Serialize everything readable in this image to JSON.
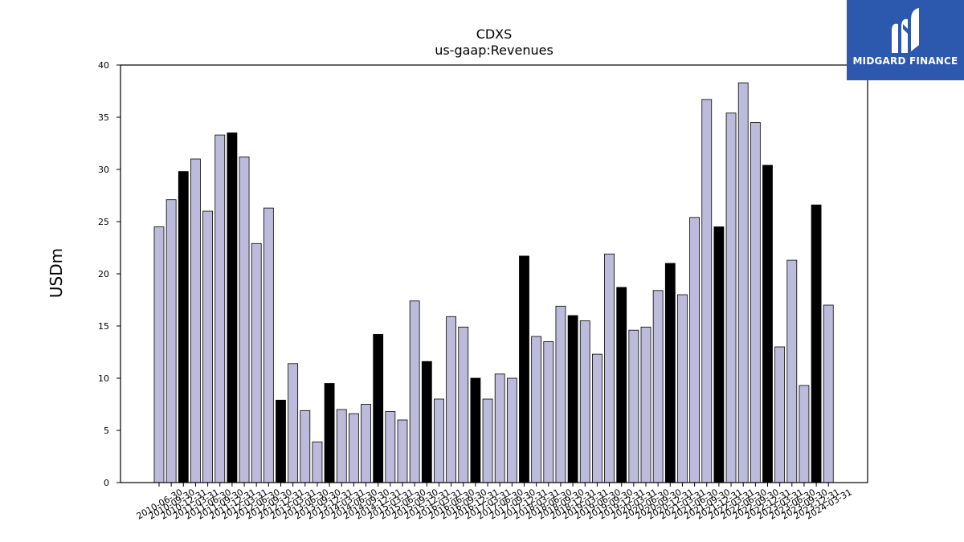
{
  "chart_data": {
    "type": "bar",
    "title": "CDXS",
    "subtitle": "us-gaap:Revenues",
    "ylabel": "USDm",
    "xlabel": "",
    "ylim": [
      0,
      40
    ],
    "yticks": [
      0,
      5,
      10,
      15,
      20,
      25,
      30,
      35,
      40
    ],
    "grid": false,
    "colors": {
      "default": "#bcbbdb",
      "highlight": "#000000",
      "edge": "#000000"
    },
    "categories": [
      "2010-06-30",
      "2010-09-30",
      "2010-12-31",
      "2011-03-31",
      "2011-06-30",
      "2011-09-30",
      "2011-12-31",
      "2012-03-31",
      "2012-06-30",
      "2012-09-30",
      "2012-12-31",
      "2013-03-31",
      "2013-06-30",
      "2013-09-30",
      "2013-12-31",
      "2014-03-31",
      "2014-06-30",
      "2014-09-30",
      "2014-12-31",
      "2015-03-31",
      "2015-06-30",
      "2015-09-30",
      "2015-12-31",
      "2016-03-31",
      "2016-06-30",
      "2016-09-30",
      "2016-12-31",
      "2017-03-31",
      "2017-06-30",
      "2017-09-30",
      "2017-12-31",
      "2018-03-31",
      "2018-06-30",
      "2018-09-30",
      "2018-12-31",
      "2019-03-31",
      "2019-06-30",
      "2019-09-30",
      "2019-12-31",
      "2020-03-31",
      "2020-06-30",
      "2020-09-30",
      "2020-12-31",
      "2021-03-31",
      "2021-06-30",
      "2021-09-30",
      "2021-12-31",
      "2022-03-31",
      "2022-06-30",
      "2022-09-30",
      "2022-12-31",
      "2023-03-31",
      "2023-06-30",
      "2023-09-30",
      "2023-12-31",
      "2024-03-31"
    ],
    "values": [
      24.5,
      27.1,
      29.8,
      31.0,
      26.0,
      33.3,
      33.5,
      31.2,
      22.9,
      26.3,
      7.9,
      11.4,
      6.9,
      3.9,
      9.5,
      7.0,
      6.6,
      7.5,
      14.2,
      6.8,
      6.0,
      17.4,
      11.6,
      8.0,
      15.9,
      14.9,
      10.0,
      8.0,
      10.4,
      10.0,
      21.7,
      14.0,
      13.5,
      16.9,
      16.0,
      15.5,
      12.3,
      21.9,
      18.7,
      14.6,
      14.9,
      18.4,
      21.0,
      18.0,
      25.4,
      36.7,
      24.5,
      35.4,
      38.3,
      34.5,
      30.4,
      13.0,
      21.3,
      9.3,
      26.6,
      17.0
    ],
    "highlight": [
      false,
      false,
      true,
      false,
      false,
      false,
      true,
      false,
      false,
      false,
      true,
      false,
      false,
      false,
      true,
      false,
      false,
      false,
      true,
      false,
      false,
      false,
      true,
      false,
      false,
      false,
      true,
      false,
      false,
      false,
      true,
      false,
      false,
      false,
      true,
      false,
      false,
      false,
      true,
      false,
      false,
      false,
      true,
      false,
      false,
      false,
      true,
      false,
      false,
      false,
      true,
      false,
      false,
      false,
      true,
      false
    ]
  },
  "logo": {
    "text": "MIDGARD FINANCE"
  }
}
